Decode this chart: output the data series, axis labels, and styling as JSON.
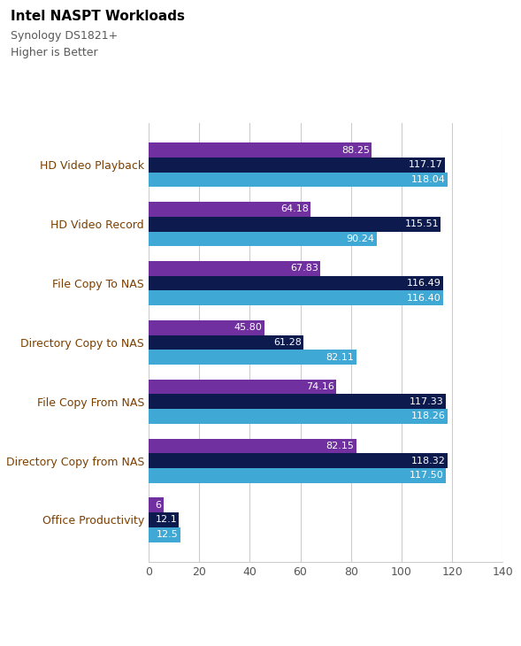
{
  "title": "Intel NASPT Workloads",
  "subtitle1": "Synology DS1821+",
  "subtitle2": "Higher is Better",
  "categories": [
    "HD Video Playback",
    "HD Video Record",
    "File Copy To NAS",
    "Directory Copy to NAS",
    "File Copy From NAS",
    "Directory Copy from NAS",
    "Office Productivity"
  ],
  "series": {
    "RAID0": [
      118.04,
      90.24,
      116.4,
      82.11,
      118.26,
      117.5,
      12.5
    ],
    "RAID1": [
      117.17,
      115.51,
      116.49,
      61.28,
      117.33,
      118.32,
      12.1
    ],
    "SHR2/RAID6": [
      88.25,
      64.18,
      67.83,
      45.8,
      74.16,
      82.15,
      6.0
    ]
  },
  "colors": {
    "RAID0": "#3fa8d5",
    "RAID1": "#0d1a4d",
    "SHR2/RAID6": "#7030a0"
  },
  "value_labels": {
    "RAID0": [
      "118.04",
      "90.24",
      "116.40",
      "82.11",
      "118.26",
      "117.50",
      "12.5"
    ],
    "RAID1": [
      "117.17",
      "115.51",
      "116.49",
      "61.28",
      "117.33",
      "118.32",
      "12.1"
    ],
    "SHR2/RAID6": [
      "88.25",
      "64.18",
      "67.83",
      "45.80",
      "74.16",
      "82.15",
      "6"
    ]
  },
  "xlim": [
    0,
    140
  ],
  "xticks": [
    0,
    20,
    40,
    60,
    80,
    100,
    120,
    140
  ],
  "bar_height": 0.25,
  "title_fontsize": 11,
  "subtitle_fontsize": 9,
  "label_fontsize": 9,
  "tick_fontsize": 9,
  "value_fontsize": 8,
  "title_color": "#000000",
  "subtitle_color": "#595959",
  "category_label_color": "#7b3f00",
  "background_color": "#ffffff",
  "grid_color": "#cccccc"
}
